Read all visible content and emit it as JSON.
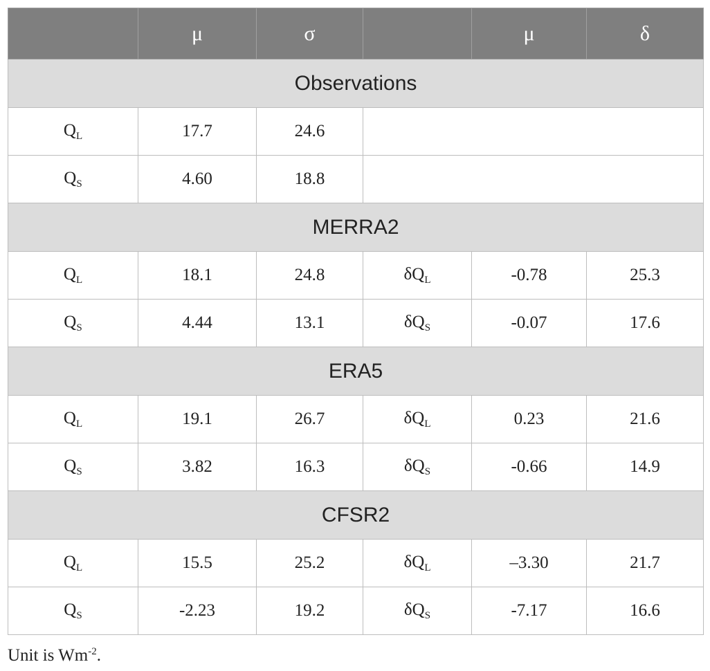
{
  "headers": [
    "",
    "μ",
    "σ",
    "",
    "μ",
    "δ"
  ],
  "sections": [
    {
      "name": "Observations",
      "rows": [
        {
          "var": "Q",
          "sub": "L",
          "mu": "17.7",
          "sigma": "24.6"
        },
        {
          "var": "Q",
          "sub": "S",
          "mu": "4.60",
          "sigma": "18.8"
        }
      ]
    },
    {
      "name": "MERRA2",
      "rows": [
        {
          "var": "Q",
          "sub": "L",
          "mu": "18.1",
          "sigma": "24.8",
          "dvar": "δQ",
          "dsub": "L",
          "dmu": "-0.78",
          "delta": "25.3"
        },
        {
          "var": "Q",
          "sub": "S",
          "mu": "4.44",
          "sigma": "13.1",
          "dvar": "δQ",
          "dsub": "S",
          "dmu": "-0.07",
          "delta": "17.6"
        }
      ]
    },
    {
      "name": "ERA5",
      "rows": [
        {
          "var": "Q",
          "sub": "L",
          "mu": "19.1",
          "sigma": "26.7",
          "dvar": "δQ",
          "dsub": "L",
          "dmu": "0.23",
          "delta": "21.6"
        },
        {
          "var": "Q",
          "sub": "S",
          "mu": "3.82",
          "sigma": "16.3",
          "dvar": "δQ",
          "dsub": "S",
          "dmu": "-0.66",
          "delta": "14.9"
        }
      ]
    },
    {
      "name": "CFSR2",
      "rows": [
        {
          "var": "Q",
          "sub": "L",
          "mu": "15.5",
          "sigma": "25.2",
          "dvar": "δQ",
          "dsub": "L",
          "dmu": "–3.30",
          "delta": "21.7"
        },
        {
          "var": "Q",
          "sub": "S",
          "mu": "-2.23",
          "sigma": "19.2",
          "dvar": "δQ",
          "dsub": "S",
          "dmu": "-7.17",
          "delta": "16.6"
        }
      ]
    }
  ],
  "footnote": {
    "text": "Unit is Wm",
    "sup": "-2",
    "end": "."
  }
}
